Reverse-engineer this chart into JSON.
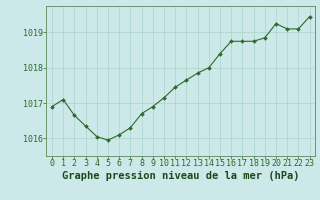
{
  "x": [
    0,
    1,
    2,
    3,
    4,
    5,
    6,
    7,
    8,
    9,
    10,
    11,
    12,
    13,
    14,
    15,
    16,
    17,
    18,
    19,
    20,
    21,
    22,
    23
  ],
  "y": [
    1016.9,
    1017.1,
    1016.65,
    1016.35,
    1016.05,
    1015.95,
    1016.1,
    1016.3,
    1016.7,
    1016.9,
    1017.15,
    1017.45,
    1017.65,
    1017.85,
    1018.0,
    1018.4,
    1018.75,
    1018.75,
    1018.75,
    1018.85,
    1019.25,
    1019.1,
    1019.1,
    1019.45
  ],
  "ylim": [
    1015.5,
    1019.75
  ],
  "yticks": [
    1016,
    1017,
    1018,
    1019
  ],
  "xticks": [
    0,
    1,
    2,
    3,
    4,
    5,
    6,
    7,
    8,
    9,
    10,
    11,
    12,
    13,
    14,
    15,
    16,
    17,
    18,
    19,
    20,
    21,
    22,
    23
  ],
  "line_color": "#2d6a2d",
  "marker": "D",
  "marker_size": 2.0,
  "bg_color": "#cce8e8",
  "grid_color": "#aad4cc",
  "xlabel": "Graphe pression niveau de la mer (hPa)",
  "xlabel_color": "#1a4a1a",
  "xlabel_fontsize": 7.5,
  "tick_fontsize": 6.0,
  "ytick_color": "#2d6a2d",
  "xtick_color": "#2d6a2d",
  "line_width": 0.8,
  "spine_color": "#5a8a5a"
}
